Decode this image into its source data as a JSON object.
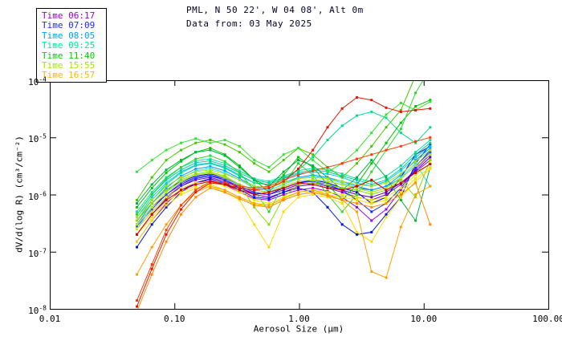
{
  "header": {
    "title": "PML, N 50 22', W 04 08', Alt 0m",
    "subtitle": "Data from: 03 May 2025"
  },
  "chart_data": {
    "type": "line",
    "title": "PML, N 50 22', W 04 08', Alt 0m",
    "subtitle": "Data from: 03 May 2025",
    "xlabel": "Aerosol Size (μm)",
    "ylabel": "dV/d(log R) (cm³/cm⁻²)",
    "xscale": "log",
    "yscale": "log",
    "xlim": [
      0.01,
      100
    ],
    "ylim": [
      1e-08,
      0.0001
    ],
    "grid": false,
    "legend_position": "top-left",
    "axis_color": "#000000",
    "background": "#ffffff",
    "marker": "square",
    "x_ticks": [
      {
        "value": 0.01,
        "label": "0.01"
      },
      {
        "value": 0.1,
        "label": "0.10"
      },
      {
        "value": 1.0,
        "label": "1.00"
      },
      {
        "value": 10.0,
        "label": "10.00"
      },
      {
        "value": 100.0,
        "label": "100.00"
      }
    ],
    "y_ticks": [
      {
        "value": 0.0001,
        "base": "10",
        "exp": "-4"
      },
      {
        "value": 1e-05,
        "base": "10",
        "exp": "-5"
      },
      {
        "value": 1e-06,
        "base": "10",
        "exp": "-6"
      },
      {
        "value": 1e-07,
        "base": "10",
        "exp": "-7"
      },
      {
        "value": 1e-08,
        "base": "10",
        "exp": "-8"
      }
    ],
    "legend": [
      {
        "label": "Time 06:17",
        "color": "#9a00d2"
      },
      {
        "label": "Time 07:09",
        "color": "#1e28ff"
      },
      {
        "label": "Time 08:05",
        "color": "#00a0ff"
      },
      {
        "label": "Time 09:25",
        "color": "#00e6a0"
      },
      {
        "label": "Time 11:40",
        "color": "#00d200"
      },
      {
        "label": "Time 15:55",
        "color": "#a0e600"
      },
      {
        "label": "Time 16:57",
        "color": "#ffb400"
      }
    ],
    "x": [
      0.05,
      0.066,
      0.086,
      0.113,
      0.148,
      0.194,
      0.254,
      0.333,
      0.437,
      0.573,
      0.751,
      0.985,
      1.291,
      1.693,
      2.219,
      2.91,
      3.815,
      5.002,
      6.558,
      8.598,
      11.273
    ],
    "series": [
      {
        "id": "0617-a",
        "time": "Time 06:17",
        "color": "#8c00c8",
        "values": [
          2.5e-07,
          5e-07,
          9e-07,
          1.4e-06,
          1.8e-06,
          2e-06,
          1.7e-06,
          1.3e-06,
          1e-06,
          9e-07,
          1.1e-06,
          1.4e-06,
          1.5e-06,
          1.3e-06,
          1.1e-06,
          9e-07,
          8e-07,
          1e-06,
          1.5e-06,
          2.5e-06,
          4e-06
        ]
      },
      {
        "id": "0617-b",
        "time": "Time 06:17",
        "color": "#a000e6",
        "values": [
          1.5e-07,
          3.5e-07,
          7e-07,
          1.2e-06,
          1.6e-06,
          1.8e-06,
          1.5e-06,
          1.1e-06,
          8.5e-07,
          8e-07,
          1e-06,
          1.2e-06,
          1.3e-06,
          1.15e-06,
          9e-07,
          6e-07,
          3.5e-07,
          5.5e-07,
          1.2e-06,
          2.8e-06,
          5e-06
        ]
      },
      {
        "id": "0617-c",
        "time": "Time 06:17",
        "color": "#5a00b4",
        "values": [
          3e-07,
          6e-07,
          1e-06,
          1.5e-06,
          2e-06,
          2.2e-06,
          1.8e-06,
          1.3e-06,
          1.05e-06,
          1e-06,
          1.2e-06,
          1.5e-06,
          1.6e-06,
          1.4e-06,
          1.2e-06,
          1e-06,
          9e-07,
          1.1e-06,
          1.6e-06,
          2.6e-06,
          4.5e-06
        ]
      },
      {
        "id": "0709-a",
        "time": "Time 07:09",
        "color": "#1e28ff",
        "values": [
          2e-07,
          4.5e-07,
          8.5e-07,
          1.4e-06,
          1.9e-06,
          2.1e-06,
          1.8e-06,
          1.4e-06,
          1.1e-06,
          1e-06,
          1.3e-06,
          1.6e-06,
          1.7e-06,
          1.5e-06,
          1.2e-06,
          8e-07,
          5e-07,
          7e-07,
          1.3e-06,
          3e-06,
          6e-06
        ]
      },
      {
        "id": "0709-b",
        "time": "Time 07:09",
        "color": "#0014dc",
        "values": [
          1.2e-07,
          3e-07,
          6e-07,
          1.1e-06,
          1.6e-06,
          1.9e-06,
          1.6e-06,
          1.2e-06,
          9e-07,
          8.5e-07,
          1.1e-06,
          1.3e-06,
          1.1e-06,
          6e-07,
          3e-07,
          2e-07,
          2.2e-07,
          4.5e-07,
          9e-07,
          3.5e-06,
          7.5e-06
        ]
      },
      {
        "id": "0709-c",
        "time": "Time 07:09",
        "color": "#0000c8",
        "values": [
          3.5e-07,
          7e-07,
          1.2e-06,
          1.7e-06,
          2.1e-06,
          2.3e-06,
          2e-06,
          1.5e-06,
          1.2e-06,
          1.1e-06,
          1.3e-06,
          1.6e-06,
          1.8e-06,
          1.6e-06,
          1.3e-06,
          1.1e-06,
          7e-07,
          9e-07,
          2e-06,
          5e-06,
          7e-06
        ]
      },
      {
        "id": "0709-d",
        "time": "Time 07:09",
        "color": "#2850ff",
        "values": [
          2.8e-07,
          5.5e-07,
          1e-06,
          1.6e-06,
          2e-06,
          2.2e-06,
          1.9e-06,
          1.5e-06,
          1.2e-06,
          1.1e-06,
          1.4e-06,
          1.7e-06,
          1.8e-06,
          1.7e-06,
          1.5e-06,
          1.3e-06,
          1.2e-06,
          1.4e-06,
          1.9e-06,
          3.2e-06,
          5.5e-06
        ]
      },
      {
        "id": "0805-a",
        "time": "Time 08:05",
        "color": "#009cff",
        "values": [
          3e-07,
          7e-07,
          1.3e-06,
          2.1e-06,
          2.8e-06,
          3.1e-06,
          2.6e-06,
          1.9e-06,
          1.4e-06,
          1.3e-06,
          1.6e-06,
          2e-06,
          2.2e-06,
          2e-06,
          1.7e-06,
          1.4e-06,
          1.2e-06,
          1.4e-06,
          2.2e-06,
          4e-06,
          6.5e-06
        ]
      },
      {
        "id": "0805-b",
        "time": "Time 08:05",
        "color": "#00c8ff",
        "values": [
          4e-07,
          9e-07,
          1.6e-06,
          2.5e-06,
          3.3e-06,
          3.6e-06,
          3e-06,
          2.2e-06,
          1.6e-06,
          1.5e-06,
          1.9e-06,
          2.3e-06,
          2.5e-06,
          2.3e-06,
          2e-06,
          1.6e-06,
          1.4e-06,
          1.7e-06,
          2.6e-06,
          4.5e-06,
          7e-06
        ]
      },
      {
        "id": "0805-c",
        "time": "Time 08:05",
        "color": "#3cd7ff",
        "values": [
          2.5e-07,
          6e-07,
          1.1e-06,
          1.9e-06,
          2.6e-06,
          2.9e-06,
          2.4e-06,
          1.8e-06,
          1.3e-06,
          1.2e-06,
          1.5e-06,
          1.9e-06,
          2.1e-06,
          1.9e-06,
          1.6e-06,
          1.3e-06,
          1.1e-06,
          1.3e-06,
          2e-06,
          3.5e-06,
          1.4e-06
        ]
      },
      {
        "id": "0925-a",
        "time": "Time 09:25",
        "color": "#00e6a0",
        "values": [
          5e-07,
          1.1e-06,
          2e-06,
          3e-06,
          3.9e-06,
          4.2e-06,
          3.5e-06,
          2.6e-06,
          1.9e-06,
          1.7e-06,
          2.1e-06,
          2.6e-06,
          2.9e-06,
          2.7e-06,
          2.3e-06,
          1.9e-06,
          1.7e-06,
          2.1e-06,
          3.2e-06,
          5.5e-06,
          9e-06
        ]
      },
      {
        "id": "0925-b",
        "time": "Time 09:25",
        "color": "#00dc8c",
        "values": [
          3.5e-07,
          8e-07,
          1.5e-06,
          2.4e-06,
          3.2e-06,
          3.5e-06,
          2.9e-06,
          2.1e-06,
          1.6e-06,
          1.5e-06,
          1.9e-06,
          2.7e-06,
          4.5e-06,
          9e-06,
          1.6e-05,
          2.4e-05,
          2.8e-05,
          2.2e-05,
          1.2e-05,
          8e-06,
          1.5e-05
        ]
      },
      {
        "id": "0925-c",
        "time": "Time 09:25",
        "color": "#14c896",
        "values": [
          4.5e-07,
          1e-06,
          1.8e-06,
          2.7e-06,
          3.6e-06,
          3.9e-06,
          3.2e-06,
          2.4e-06,
          1.8e-06,
          1.6e-06,
          2e-06,
          2.4e-06,
          2.7e-06,
          2.5e-06,
          2.1e-06,
          1.8e-06,
          1.5e-06,
          1.8e-06,
          2.8e-06,
          5e-06,
          8e-06
        ]
      },
      {
        "id": "1140-a",
        "time": "Time 11:40",
        "color": "#00c800",
        "values": [
          6e-07,
          1.3e-06,
          2.4e-06,
          3.8e-06,
          5.5e-06,
          6.5e-06,
          5e-06,
          3.2e-06,
          1.8e-06,
          1.1e-06,
          2.2e-06,
          4.5e-06,
          3e-06,
          1.5e-06,
          8e-07,
          1.5e-06,
          3.5e-06,
          8e-06,
          1.8e-05,
          3.5e-05,
          4.5e-05
        ]
      },
      {
        "id": "1140-b",
        "time": "Time 11:40",
        "color": "#2cd72c",
        "values": [
          4.5e-07,
          1e-06,
          1.9e-06,
          3e-06,
          4.2e-06,
          4.8e-06,
          3.8e-06,
          2.4e-06,
          1.2e-06,
          5e-07,
          1.5e-06,
          3.5e-06,
          2.2e-06,
          1e-06,
          5e-07,
          1e-06,
          2.5e-06,
          6e-06,
          1.4e-05,
          6e-05,
          0.00016
        ]
      },
      {
        "id": "1140-c",
        "time": "Time 11:40",
        "color": "#00b43c",
        "values": [
          7e-07,
          1.5e-06,
          2.7e-06,
          4e-06,
          5.5e-06,
          6e-06,
          4.8e-06,
          3e-06,
          1.8e-06,
          1.4e-06,
          2.5e-06,
          4e-06,
          3.2e-06,
          2e-06,
          1.2e-06,
          2e-06,
          4e-06,
          2e-06,
          8e-07,
          3.5e-07,
          3e-06
        ]
      },
      {
        "id": "1140-d",
        "time": "Time 11:40",
        "color": "#46c800",
        "values": [
          8e-07,
          2e-06,
          4e-06,
          6e-06,
          8e-06,
          9e-06,
          7.5e-06,
          5.5e-06,
          3.5e-06,
          2.5e-06,
          4e-06,
          6.5e-06,
          5e-06,
          3e-06,
          2e-06,
          3.5e-06,
          7e-06,
          1.5e-05,
          3e-05,
          0.00012,
          0.00025
        ]
      },
      {
        "id": "1140-e",
        "time": "Time 11:40",
        "color": "#32e632",
        "values": [
          2.5e-06,
          4e-06,
          6e-06,
          8e-06,
          9.5e-06,
          8e-06,
          9e-06,
          7e-06,
          4e-06,
          3e-06,
          5e-06,
          6.5e-06,
          4e-06,
          2.5e-06,
          3.5e-06,
          6e-06,
          1.2e-05,
          2.5e-05,
          4e-05,
          3e-05,
          4.2e-05
        ]
      },
      {
        "id": "1555-a",
        "time": "Time 15:55",
        "color": "#a0e600",
        "values": [
          4e-07,
          8e-07,
          1.4e-06,
          2e-06,
          2.5e-06,
          2.7e-06,
          2.3e-06,
          1.8e-06,
          1.4e-06,
          1.3e-06,
          1.6e-06,
          1.9e-06,
          2e-06,
          1.9e-06,
          1.7e-06,
          1.5e-06,
          1.4e-06,
          1.6e-06,
          2.3e-06,
          3.8e-06,
          6e-06
        ]
      },
      {
        "id": "1555-b",
        "time": "Time 15:55",
        "color": "#b4eb00",
        "values": [
          3e-07,
          6e-07,
          1.1e-06,
          1.7e-06,
          2.2e-06,
          2.4e-06,
          2e-06,
          1.5e-06,
          1.2e-06,
          1.1e-06,
          1.4e-06,
          1.7e-06,
          1.8e-06,
          1.7e-06,
          1.5e-06,
          1.3e-06,
          1.1e-06,
          1.3e-06,
          1.9e-06,
          3.2e-06,
          5e-06
        ]
      },
      {
        "id": "1555-c",
        "time": "Time 15:55",
        "color": "#8cdc00",
        "values": [
          3.5e-07,
          7e-07,
          1.2e-06,
          1.8e-06,
          2.3e-06,
          2.5e-06,
          2.1e-06,
          1.5e-06,
          6e-07,
          3e-07,
          9e-07,
          1.5e-06,
          1.6e-06,
          1.5e-06,
          1.3e-06,
          1.2e-06,
          1e-06,
          1.2e-06,
          1.8e-06,
          9e-07,
          4e-06
        ]
      },
      {
        "id": "1657-a",
        "time": "Time 16:57",
        "color": "#e6e600",
        "values": [
          2.5e-07,
          5e-07,
          9e-07,
          1.3e-06,
          1.6e-06,
          1.7e-06,
          1.4e-06,
          1.1e-06,
          8e-07,
          7e-07,
          9e-07,
          1.1e-06,
          1.2e-06,
          1.1e-06,
          1e-06,
          9e-07,
          8e-07,
          9e-07,
          1.3e-06,
          2.2e-06,
          3.5e-06
        ]
      },
      {
        "id": "1657-b",
        "time": "Time 16:57",
        "color": "#f0e000",
        "values": [
          2e-07,
          4e-07,
          7.5e-07,
          1.1e-06,
          1.4e-06,
          1.5e-06,
          1.2e-06,
          9e-07,
          7e-07,
          6e-07,
          8e-07,
          1e-06,
          1.1e-06,
          1e-06,
          9e-07,
          8e-07,
          7e-07,
          8e-07,
          1.1e-06,
          1.9e-06,
          3e-06
        ]
      },
      {
        "id": "1657-c",
        "time": "Time 16:57",
        "color": "#ffd700",
        "values": [
          1.5e-07,
          3.5e-07,
          6.5e-07,
          1e-06,
          1.3e-06,
          1.4e-06,
          1.1e-06,
          8e-07,
          3e-07,
          1.2e-07,
          5e-07,
          9e-07,
          1e-06,
          9e-07,
          7e-07,
          2.2e-07,
          1.5e-07,
          4e-07,
          9e-07,
          1.7e-06,
          2.8e-06
        ]
      },
      {
        "id": "1657-d",
        "time": "Time 16:57",
        "color": "#ffa000",
        "values": [
          4e-08,
          1.2e-07,
          3e-07,
          6.5e-07,
          1.1e-06,
          1.4e-06,
          1.2e-06,
          9e-07,
          7e-07,
          6.5e-07,
          8.5e-07,
          1.1e-06,
          1.2e-06,
          1e-06,
          8e-07,
          5e-07,
          4.5e-08,
          3.5e-08,
          2.7e-07,
          1e-06,
          1.4e-06
        ]
      },
      {
        "id": "1657-e",
        "time": "Time 16:57",
        "color": "#ff8c00",
        "values": [
          9e-09,
          4e-08,
          1.5e-07,
          4.5e-07,
          9e-07,
          1.3e-06,
          1.1e-06,
          8.5e-07,
          6.5e-07,
          6e-07,
          8e-07,
          1e-06,
          1.1e-06,
          9.5e-07,
          8e-07,
          7e-07,
          6e-07,
          7e-07,
          1e-06,
          1.6e-06,
          3e-07
        ]
      },
      {
        "id": "red-a",
        "time": "",
        "color": "#e61400",
        "values": [
          1.1e-08,
          5e-08,
          2e-07,
          5.5e-07,
          1.1e-06,
          1.6e-06,
          1.5e-06,
          1.3e-06,
          1.2e-06,
          1.3e-06,
          1.7e-06,
          2.8e-06,
          6e-06,
          1.5e-05,
          3.2e-05,
          5e-05,
          4.5e-05,
          3.3e-05,
          2.8e-05,
          3e-05,
          3.2e-05
        ]
      },
      {
        "id": "red-b",
        "time": "",
        "color": "#ff3c00",
        "values": [
          1.4e-08,
          6e-08,
          2.4e-07,
          6.5e-07,
          1.2e-06,
          1.7e-06,
          1.6e-06,
          1.4e-06,
          1.3e-06,
          1.4e-06,
          1.8e-06,
          2.2e-06,
          2.6e-06,
          3e-06,
          3.5e-06,
          4.2e-06,
          5e-06,
          6e-06,
          7e-06,
          8.5e-06,
          1e-05
        ]
      },
      {
        "id": "red-c",
        "time": "",
        "color": "#d20000",
        "values": [
          2e-07,
          4.5e-07,
          8e-07,
          1.2e-06,
          1.5e-06,
          1.7e-06,
          1.5e-06,
          1.2e-06,
          1e-06,
          1.1e-06,
          1.3e-06,
          1.6e-06,
          1.5e-06,
          1.3e-06,
          1.2e-06,
          1.4e-06,
          1.8e-06,
          1.2e-06,
          1.6e-06,
          2.4e-06,
          3.4e-06
        ]
      }
    ]
  }
}
